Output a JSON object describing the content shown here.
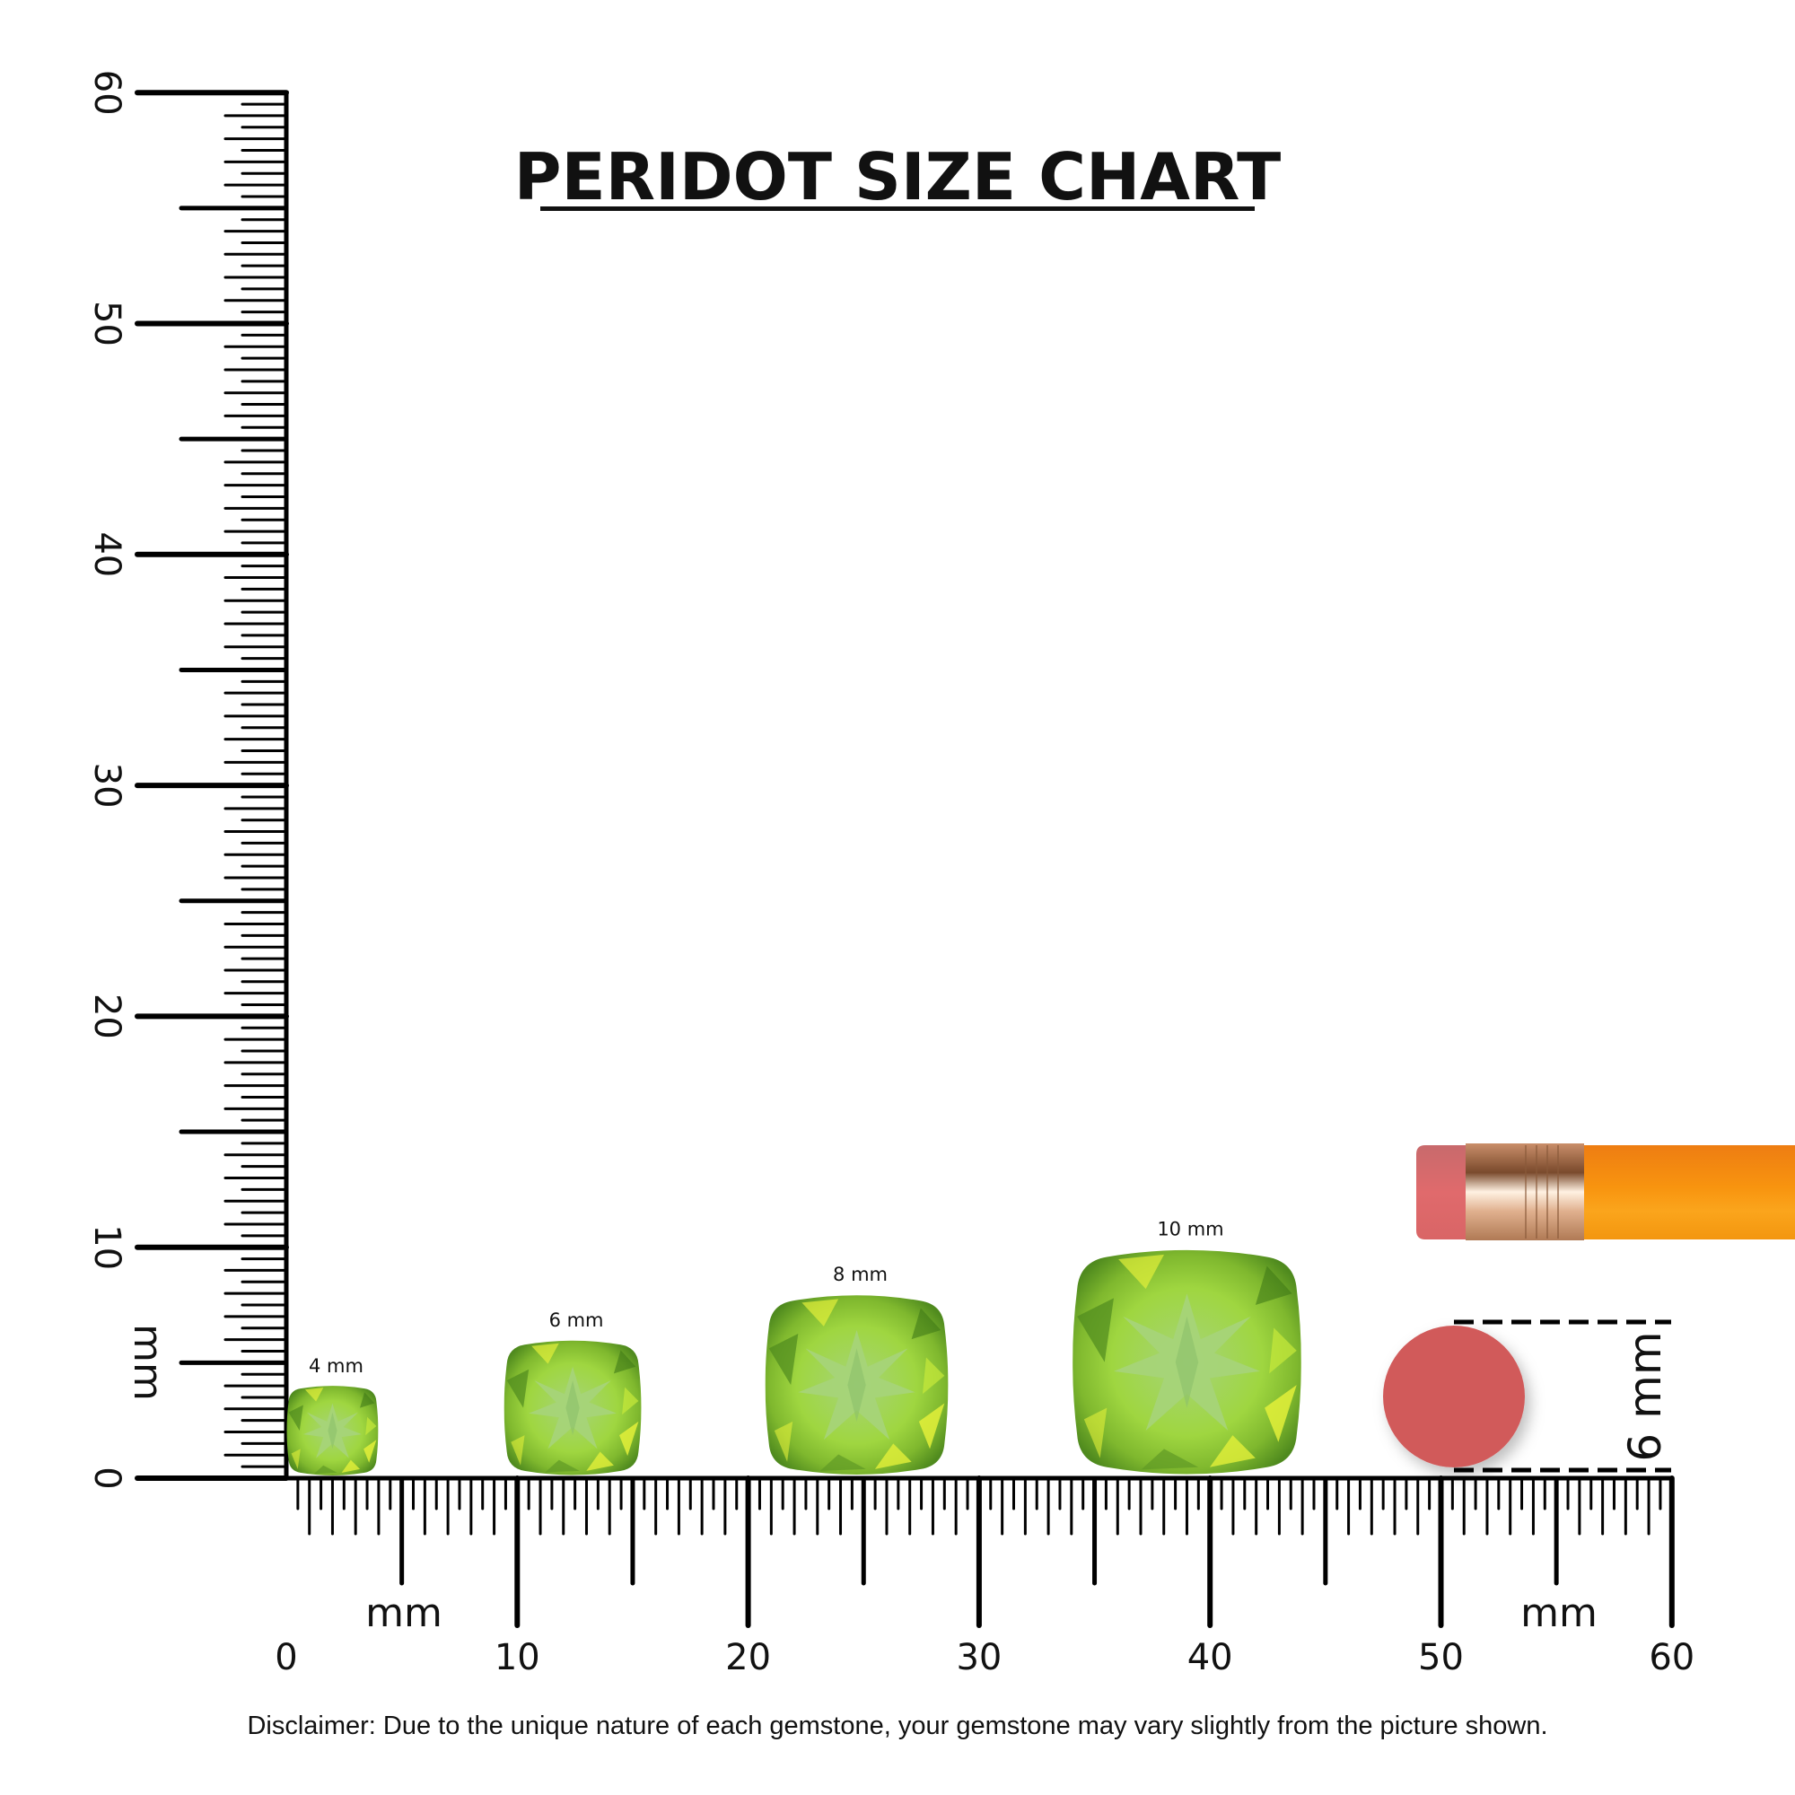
{
  "title": "PERIDOT SIZE CHART",
  "vertical_ruler": {
    "unit_label": "mm",
    "range_mm": [
      0,
      60
    ],
    "labels": [
      "0",
      "10",
      "20",
      "30",
      "40",
      "50",
      "60"
    ]
  },
  "horizontal_ruler": {
    "unit_label": "mm",
    "range_mm": [
      0,
      60
    ],
    "labels": [
      "0",
      "10",
      "20",
      "30",
      "40",
      "50",
      "60"
    ]
  },
  "gems": [
    {
      "label": "4 mm",
      "size_mm": 4
    },
    {
      "label": "6 mm",
      "size_mm": 6
    },
    {
      "label": "8 mm",
      "size_mm": 8
    },
    {
      "label": "10 mm",
      "size_mm": 10
    }
  ],
  "reference": {
    "object": "pencil eraser",
    "label": "6 mm",
    "size_mm": 6
  },
  "disclaimer": "Disclaimer: Due to the unique nature of each gemstone, your gemstone may vary slightly from the picture shown.",
  "colors": {
    "gem_light": "#b8e85a",
    "gem_mid": "#8cc63a",
    "gem_dark": "#4f8a1e",
    "gem_yellow": "#e3f03a",
    "gem_table": "#a6d47a",
    "eraser": "#d15a5a",
    "pencil_body": "#f79a14",
    "ferrule": "#d9a07a",
    "ruler": "#000000"
  }
}
